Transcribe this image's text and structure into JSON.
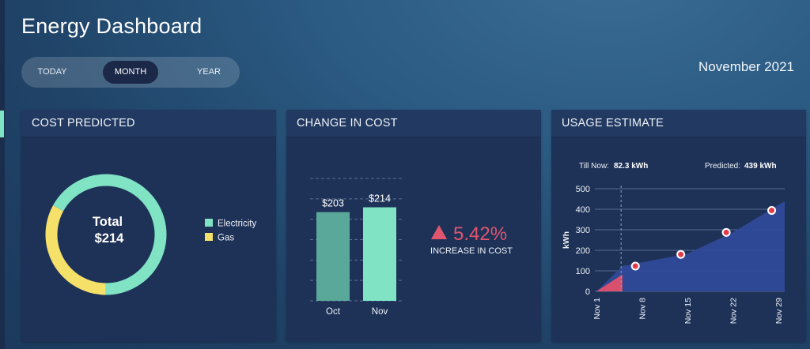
{
  "header": {
    "title": "Energy Dashboard",
    "period": "November 2021",
    "tabs": [
      {
        "label": "TODAY",
        "active": false
      },
      {
        "label": "MONTH",
        "active": true
      },
      {
        "label": "YEAR",
        "active": false
      }
    ]
  },
  "colors": {
    "electricity": "#7fe3c4",
    "gas": "#f5e06a",
    "increase": "#e0566e",
    "usage_area": "#2f4a9a",
    "usage_till_now": "#d9506e"
  },
  "cards": {
    "cost_predicted": {
      "title": "COST PREDICTED",
      "total_label": "Total",
      "total_value": "$214",
      "legend": [
        {
          "label": "Electricity",
          "color": "#7fe3c4"
        },
        {
          "label": "Gas",
          "color": "#f5e06a"
        }
      ]
    },
    "change_in_cost": {
      "title": "CHANGE IN COST",
      "percent": "5.42%",
      "caption": "INCREASE IN COST"
    },
    "usage_estimate": {
      "title": "USAGE ESTIMATE",
      "till_now_label": "Till Now:",
      "till_now_value": "82.3 kWh",
      "predicted_label": "Predicted:",
      "predicted_value": "439 kWh"
    }
  },
  "chart_data": [
    {
      "type": "pie",
      "categories": [
        "Electricity",
        "Gas"
      ],
      "values": [
        67,
        33
      ],
      "donut": true
    },
    {
      "type": "bar",
      "categories": [
        "Oct",
        "Nov"
      ],
      "values": [
        203,
        214
      ],
      "data_labels": [
        "$203",
        "$214"
      ],
      "ylim": [
        0,
        280
      ],
      "grid": true
    },
    {
      "type": "area",
      "x": [
        "Nov 1",
        "Nov 8",
        "Nov 15",
        "Nov 22",
        "Nov 29"
      ],
      "x_days": [
        1,
        8,
        15,
        22,
        29
      ],
      "area_x": [
        1,
        5,
        15,
        22,
        30
      ],
      "area_y": [
        0,
        123,
        183,
        287,
        439
      ],
      "till_now_x": [
        1,
        5
      ],
      "till_now_y": [
        0,
        82.3
      ],
      "points": [
        {
          "x": 7,
          "y": 123
        },
        {
          "x": 14,
          "y": 180
        },
        {
          "x": 21,
          "y": 287
        },
        {
          "x": 28,
          "y": 394
        }
      ],
      "today_x": 4.8,
      "ylabel": "kWh",
      "yticks": [
        0,
        100,
        200,
        300,
        400,
        500
      ],
      "ylim": [
        0,
        500
      ],
      "xlim": [
        1,
        30
      ],
      "grid": true
    }
  ]
}
